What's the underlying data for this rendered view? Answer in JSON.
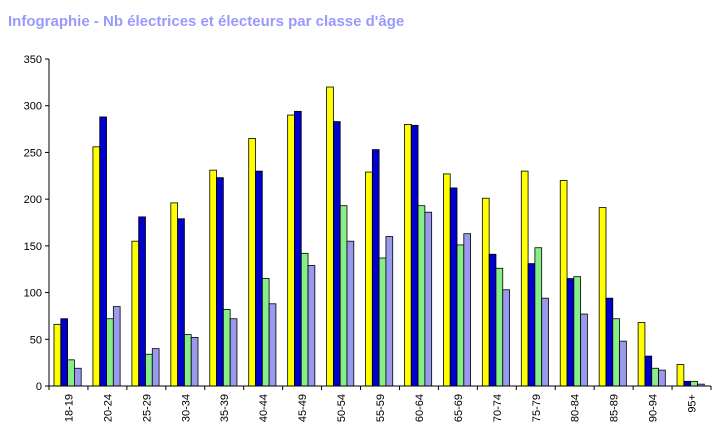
{
  "header": {
    "title": "Infographie - Nb électrices et électeurs par classe d'âge"
  },
  "chart_data": {
    "type": "bar",
    "title": "Infographie - Nb électrices et électeurs par classe d'âge",
    "xlabel": "",
    "ylabel": "",
    "ylim": [
      0,
      350
    ],
    "yticks": [
      0,
      50,
      100,
      150,
      200,
      250,
      300,
      350
    ],
    "grid": false,
    "legend": "none",
    "categories": [
      "18-19",
      "20-24",
      "25-29",
      "30-34",
      "35-39",
      "40-44",
      "45-49",
      "50-54",
      "55-59",
      "60-64",
      "65-69",
      "70-74",
      "75-79",
      "80-84",
      "85-89",
      "90-94",
      "95+"
    ],
    "series": [
      {
        "color": "#ffff00",
        "values": [
          66,
          256,
          155,
          196,
          231,
          265,
          290,
          320,
          229,
          280,
          227,
          201,
          230,
          220,
          191,
          68,
          23
        ]
      },
      {
        "color": "#0000cc",
        "values": [
          72,
          288,
          181,
          179,
          223,
          230,
          294,
          283,
          253,
          279,
          212,
          141,
          131,
          115,
          94,
          32,
          5
        ]
      },
      {
        "color": "#88ee88",
        "values": [
          28,
          72,
          34,
          55,
          82,
          115,
          142,
          193,
          137,
          193,
          151,
          126,
          148,
          117,
          72,
          19,
          5
        ]
      },
      {
        "color": "#9999ee",
        "values": [
          19,
          85,
          40,
          52,
          72,
          88,
          129,
          155,
          160,
          186,
          163,
          103,
          94,
          77,
          48,
          17,
          2
        ]
      }
    ]
  }
}
